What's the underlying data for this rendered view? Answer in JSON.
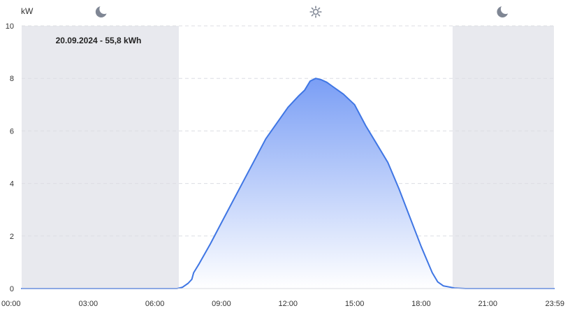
{
  "chart_data": {
    "type": "area",
    "title": "20.09.2024 - 55,8 kWh",
    "ylabel": "kW",
    "xlabel": "",
    "ylim": [
      0,
      10
    ],
    "xlim": [
      "00:00",
      "23:59"
    ],
    "y_ticks": [
      "0",
      "2",
      "4",
      "6",
      "8",
      "10"
    ],
    "x_ticks": [
      "00:00",
      "03:00",
      "06:00",
      "09:00",
      "12:00",
      "15:00",
      "18:00",
      "21:00",
      "23:59"
    ],
    "grid": "horizontal-dashed",
    "night_periods": [
      {
        "from": "00:00",
        "to": "07:05"
      },
      {
        "from": "19:25",
        "to": "23:59"
      }
    ],
    "icons": [
      {
        "name": "moon-icon",
        "at": "03:35"
      },
      {
        "name": "sun-icon",
        "at": "13:15"
      },
      {
        "name": "moon-icon",
        "at": "21:40"
      }
    ],
    "colors": {
      "line": "#3f76e4",
      "fill_top": "#7a9ef5",
      "fill_bottom": "#ffffff",
      "night": "#e8e9ee"
    },
    "series": [
      {
        "values": [
          [
            "00:00",
            0
          ],
          [
            "07:00",
            0
          ],
          [
            "07:15",
            0.05
          ],
          [
            "07:30",
            0.2
          ],
          [
            "07:40",
            0.35
          ],
          [
            "07:45",
            0.6
          ],
          [
            "08:00",
            0.95
          ],
          [
            "08:30",
            1.7
          ],
          [
            "09:00",
            2.5
          ],
          [
            "09:30",
            3.3
          ],
          [
            "10:00",
            4.1
          ],
          [
            "10:30",
            4.9
          ],
          [
            "11:00",
            5.7
          ],
          [
            "11:30",
            6.3
          ],
          [
            "12:00",
            6.9
          ],
          [
            "12:30",
            7.35
          ],
          [
            "12:45",
            7.55
          ],
          [
            "13:00",
            7.9
          ],
          [
            "13:15",
            8.0
          ],
          [
            "13:30",
            7.95
          ],
          [
            "13:45",
            7.85
          ],
          [
            "14:00",
            7.7
          ],
          [
            "14:30",
            7.4
          ],
          [
            "15:00",
            7.0
          ],
          [
            "15:30",
            6.2
          ],
          [
            "16:00",
            5.5
          ],
          [
            "16:30",
            4.8
          ],
          [
            "17:00",
            3.8
          ],
          [
            "17:30",
            2.7
          ],
          [
            "18:00",
            1.6
          ],
          [
            "18:30",
            0.6
          ],
          [
            "18:45",
            0.25
          ],
          [
            "19:00",
            0.1
          ],
          [
            "19:30",
            0.02
          ],
          [
            "20:00",
            0
          ],
          [
            "23:59",
            0
          ]
        ]
      }
    ]
  }
}
